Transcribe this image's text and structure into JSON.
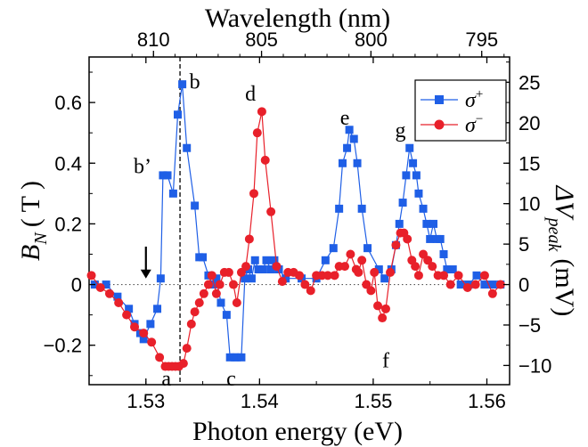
{
  "chart_data": {
    "type": "scatter",
    "x_axis": {
      "label": "Photon energy (eV)",
      "range": [
        1.525,
        1.562
      ],
      "ticks": [
        1.53,
        1.54,
        1.55,
        1.56
      ],
      "tick_labels": [
        "1.53",
        "1.54",
        "1.55",
        "1.56"
      ]
    },
    "y_left": {
      "label_main": "B",
      "label_sub": "N",
      "label_unit": "( T )",
      "range": [
        -0.33,
        0.75
      ],
      "ticks": [
        -0.2,
        0,
        0.2,
        0.4,
        0.6
      ],
      "tick_labels": [
        "−0.2",
        "0",
        "0.2",
        "0.4",
        "0.6"
      ]
    },
    "y_right": {
      "label_main": "ΔV",
      "label_sub": "peak",
      "label_unit": "(mV)",
      "range": [
        -12.375,
        28.125
      ],
      "ticks": [
        -10,
        -5,
        0,
        5,
        10,
        15,
        20,
        25
      ],
      "tick_labels": [
        "−10",
        "−5",
        "0",
        "5",
        "10",
        "15",
        "20",
        "25"
      ]
    },
    "x_top_axis": {
      "label": "Wavelength (nm)",
      "ticks_nm": [
        810,
        805,
        800,
        795
      ],
      "tick_labels": [
        "810",
        "805",
        "800",
        "795"
      ]
    },
    "vertical_line_x": 1.533,
    "zero_line": true,
    "arrow_x": 1.53,
    "annotations": [
      {
        "text": "a",
        "x": 1.5318,
        "y": -0.31
      },
      {
        "text": "b",
        "x": 1.5343,
        "y": 0.67
      },
      {
        "text": "b’",
        "x": 1.5297,
        "y": 0.39
      },
      {
        "text": "c",
        "x": 1.5375,
        "y": -0.31
      },
      {
        "text": "d",
        "x": 1.5392,
        "y": 0.63
      },
      {
        "text": "e",
        "x": 1.5475,
        "y": 0.55
      },
      {
        "text": "f",
        "x": 1.5511,
        "y": -0.25
      },
      {
        "text": "g",
        "x": 1.5524,
        "y": 0.51
      }
    ],
    "legend": {
      "position": "top-right",
      "entries": [
        {
          "label": "σ",
          "sup": "+",
          "series": 0
        },
        {
          "label": "σ",
          "sup": "−",
          "series": 1
        }
      ]
    },
    "series": [
      {
        "name": "σ+",
        "color": "#1f5fe6",
        "marker": "square",
        "axis": "left",
        "x": [
          1.5255,
          1.5265,
          1.5275,
          1.5285,
          1.529,
          1.5295,
          1.5298,
          1.5304,
          1.531,
          1.5313,
          1.5315,
          1.5319,
          1.5324,
          1.5328,
          1.5332,
          1.5336,
          1.5343,
          1.5347,
          1.535,
          1.5355,
          1.5359,
          1.5362,
          1.5366,
          1.5371,
          1.5374,
          1.5378,
          1.538,
          1.5384,
          1.5387,
          1.539,
          1.5393,
          1.5396,
          1.5399,
          1.5403,
          1.5406,
          1.541,
          1.5413,
          1.5417,
          1.5423,
          1.5437,
          1.545,
          1.5458,
          1.5465,
          1.547,
          1.5473,
          1.5477,
          1.5479,
          1.5483,
          1.5486,
          1.549,
          1.5495,
          1.5505,
          1.551,
          1.5516,
          1.552,
          1.5523,
          1.5526,
          1.5529,
          1.5532,
          1.5535,
          1.5538,
          1.554,
          1.5544,
          1.5547,
          1.555,
          1.5553,
          1.5556,
          1.5559,
          1.5562,
          1.5565,
          1.557,
          1.5577,
          1.5584,
          1.5591,
          1.5598,
          1.5605,
          1.5612
        ],
        "y": [
          0.0,
          0.0,
          -0.04,
          -0.08,
          -0.13,
          -0.16,
          -0.18,
          -0.13,
          -0.08,
          0.02,
          0.36,
          0.36,
          0.3,
          0.56,
          0.66,
          0.45,
          0.26,
          0.09,
          0.09,
          0.03,
          0.0,
          0.02,
          -0.06,
          -0.1,
          -0.24,
          -0.24,
          -0.24,
          -0.24,
          0.02,
          0.05,
          0.02,
          0.08,
          0.05,
          0.05,
          0.08,
          0.05,
          0.08,
          0.05,
          0.02,
          0.02,
          0.02,
          0.08,
          0.12,
          0.25,
          0.4,
          0.45,
          0.51,
          0.48,
          0.4,
          0.25,
          0.12,
          0.05,
          0.02,
          0.05,
          0.13,
          0.2,
          0.27,
          0.36,
          0.45,
          0.4,
          0.36,
          0.3,
          0.25,
          0.2,
          0.15,
          0.2,
          0.15,
          0.15,
          0.1,
          0.05,
          0.05,
          0.0,
          0.0,
          0.03,
          0.0,
          0.0,
          0.0
        ]
      },
      {
        "name": "σ−",
        "color": "#e8202a",
        "marker": "circle",
        "axis": "left",
        "x": [
          1.5252,
          1.526,
          1.5268,
          1.5276,
          1.5283,
          1.529,
          1.5298,
          1.5305,
          1.5312,
          1.5317,
          1.532,
          1.5323,
          1.5326,
          1.5329,
          1.5333,
          1.5336,
          1.534,
          1.5343,
          1.5347,
          1.5351,
          1.5355,
          1.5358,
          1.5362,
          1.5365,
          1.5369,
          1.5373,
          1.5377,
          1.538,
          1.5384,
          1.5388,
          1.5391,
          1.5395,
          1.5398,
          1.5402,
          1.5405,
          1.541,
          1.5415,
          1.542,
          1.5425,
          1.543,
          1.5435,
          1.544,
          1.5445,
          1.545,
          1.5455,
          1.546,
          1.5466,
          1.547,
          1.5475,
          1.548,
          1.5485,
          1.5487,
          1.549,
          1.5494,
          1.5498,
          1.5501,
          1.5504,
          1.5508,
          1.5511,
          1.5515,
          1.552,
          1.5524,
          1.5527,
          1.553,
          1.5534,
          1.5537,
          1.554,
          1.5544,
          1.5548,
          1.5552,
          1.5557,
          1.5562,
          1.5568,
          1.5575,
          1.5583,
          1.559,
          1.5598,
          1.5605,
          1.5612
        ],
        "y": [
          0.03,
          -0.01,
          -0.03,
          -0.06,
          -0.1,
          -0.14,
          -0.16,
          -0.19,
          -0.24,
          -0.27,
          -0.27,
          -0.27,
          -0.27,
          -0.27,
          -0.26,
          -0.21,
          -0.13,
          -0.09,
          -0.06,
          -0.03,
          0.0,
          0.03,
          -0.03,
          0.0,
          0.04,
          0.04,
          0.0,
          -0.06,
          0.04,
          0.06,
          0.15,
          0.3,
          0.5,
          0.57,
          0.41,
          0.24,
          0.06,
          0.01,
          0.04,
          0.04,
          0.03,
          0.0,
          -0.02,
          0.03,
          0.03,
          0.03,
          0.03,
          0.06,
          0.06,
          0.1,
          0.05,
          0.04,
          0.08,
          0.0,
          -0.02,
          0.04,
          -0.07,
          -0.11,
          -0.08,
          0.04,
          0.13,
          0.17,
          0.17,
          0.15,
          0.08,
          0.06,
          0.03,
          0.1,
          0.08,
          0.06,
          0.03,
          0.03,
          0.0,
          0.03,
          -0.01,
          0.0,
          0.03,
          -0.03,
          0.0
        ]
      }
    ]
  }
}
